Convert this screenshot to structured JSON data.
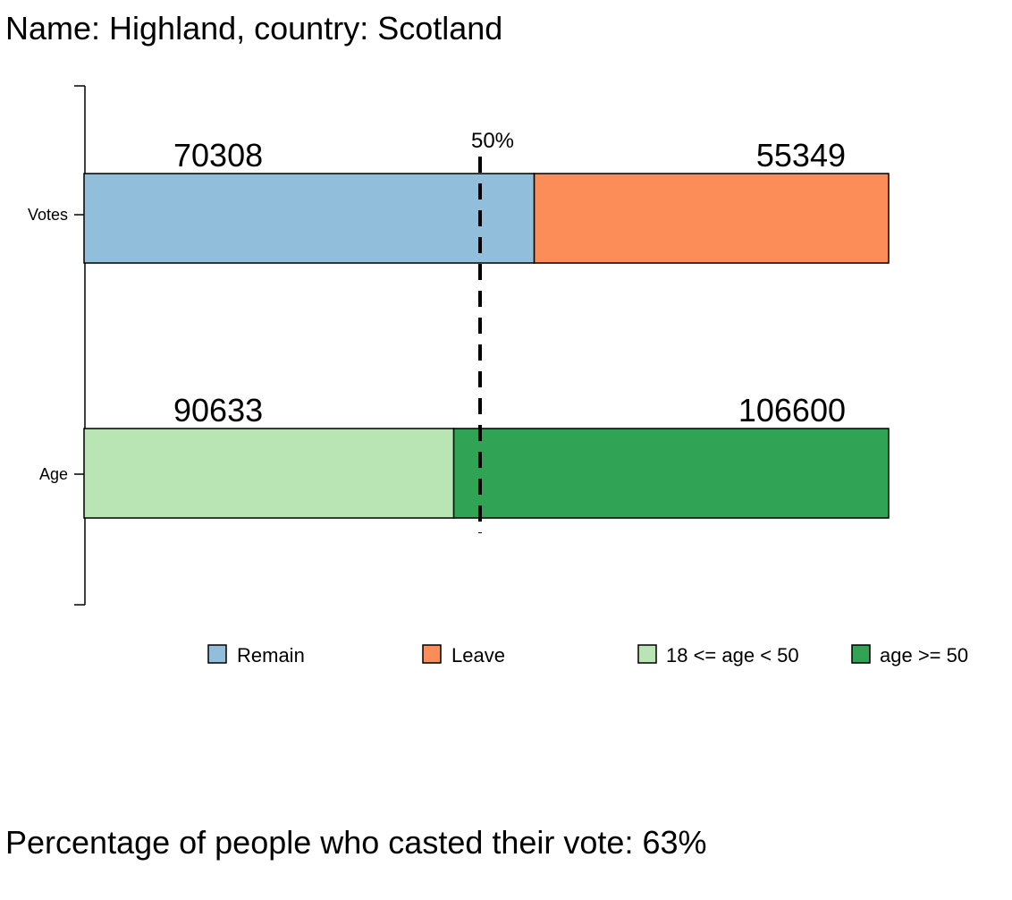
{
  "header": {
    "title": "Name: Highland, country: Scotland"
  },
  "footer": {
    "text": "Percentage of people who casted their vote: 63%"
  },
  "chart_data": {
    "type": "bar",
    "orientation": "horizontal",
    "stacked": true,
    "normalized": true,
    "categories": [
      "Votes",
      "Age"
    ],
    "reference_line": {
      "value": 0.5,
      "label": "50%",
      "style": "dashed"
    },
    "groups": [
      {
        "category": "Votes",
        "segments": [
          {
            "name": "Remain",
            "value": 70308,
            "color": "#91bfdb"
          },
          {
            "name": "Leave",
            "value": 55349,
            "color": "#fc8d59"
          }
        ]
      },
      {
        "category": "Age",
        "segments": [
          {
            "name": "18 <= age < 50",
            "value": 90633,
            "color": "#b9e4b3"
          },
          {
            "name": "age >= 50",
            "value": 106600,
            "color": "#31a354"
          }
        ]
      }
    ],
    "legend": [
      {
        "label": "Remain",
        "color": "#91bfdb"
      },
      {
        "label": "Leave",
        "color": "#fc8d59"
      },
      {
        "label": "18 <= age < 50",
        "color": "#b9e4b3"
      },
      {
        "label": "age >= 50",
        "color": "#31a354"
      }
    ],
    "legend_position": "bottom",
    "grid": false
  }
}
